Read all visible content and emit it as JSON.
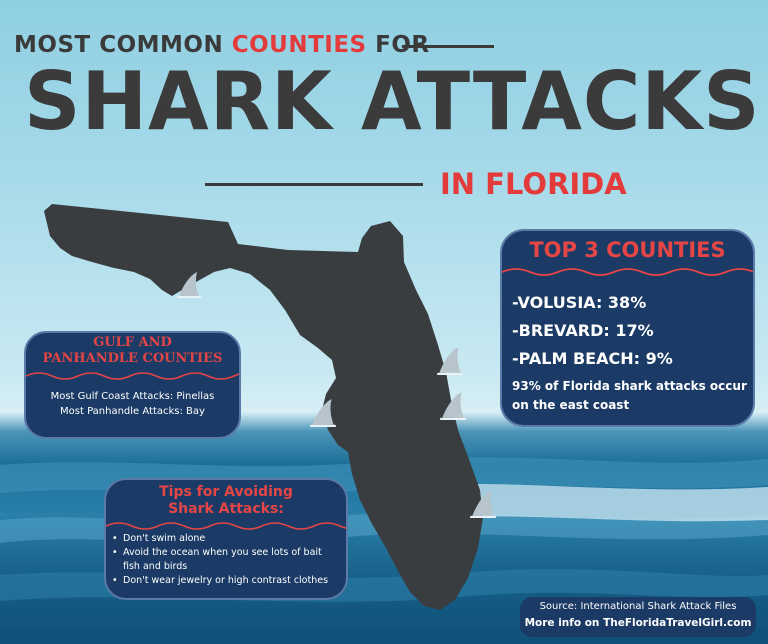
{
  "title": {
    "prefix": "MOST COMMON ",
    "accent": "COUNTIES",
    "suffix": " FOR",
    "main": "SHARK ATTACKS",
    "sub": "IN FLORIDA"
  },
  "gulf_box": {
    "heading_line1": "GULF AND",
    "heading_line2": "PANHANDLE COUNTIES",
    "line1": "Most Gulf Coast Attacks: Pinellas",
    "line2": "Most Panhandle Attacks: Bay"
  },
  "top3_box": {
    "heading": "TOP 3 COUNTIES",
    "rows": [
      "-VOLUSIA: 38%",
      "-BREVARD: 17%",
      "-PALM BEACH: 9%"
    ],
    "note": "93% of Florida shark attacks occur on the east coast"
  },
  "tips_box": {
    "heading_line1": "Tips for Avoiding",
    "heading_line2": "Shark Attacks:",
    "items": [
      "Don't swim alone",
      "Avoid the ocean when you see lots of bait fish and birds",
      "Don't wear jewelry or high contrast clothes"
    ]
  },
  "source_box": {
    "source": "Source: International Shark Attack Files",
    "more_info": "More info on TheFloridaTravelGirl.com"
  },
  "colors": {
    "accent_red": "#e33b3b",
    "box_navy": "#1b3b66",
    "title_gray": "#3a3a3a",
    "map_fill": "#3a3d40"
  },
  "icons": [
    "shark-fin-icon",
    "florida-map-icon",
    "wave-divider-icon"
  ]
}
